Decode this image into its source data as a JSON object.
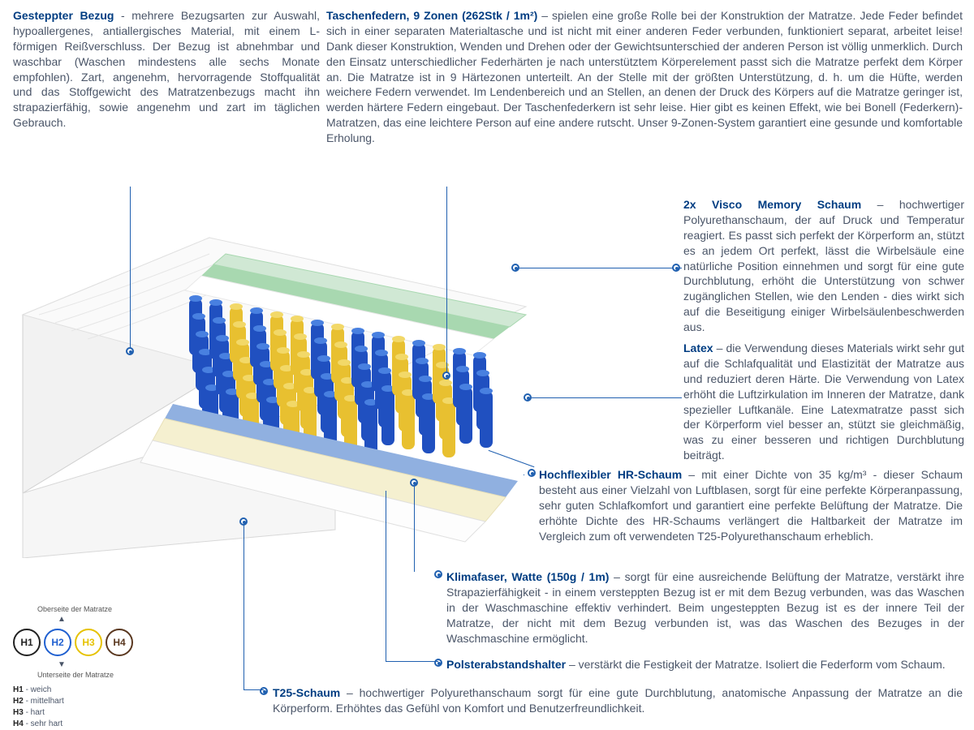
{
  "sections": {
    "bezug": {
      "title": "Gesteppter Bezug",
      "sep": " - ",
      "body": "mehrere Bezugsarten zur Auswahl, hypoallergenes, antiallergisches Material, mit einem L-förmigen Reißverschluss. Der Bezug ist abnehmbar und waschbar (Waschen mindestens alle sechs Monate empfohlen). Zart, angenehm, hervorragende Stoffqualität und das Stoffgewicht des Matratzenbezugs macht ihn strapazierfähig, sowie angenehm und zart im täglichen Gebrauch."
    },
    "federn": {
      "title": "Taschenfedern, 9 Zonen (262Stk / 1m²)",
      "sep": " – ",
      "body": "spielen eine große Rolle bei der Konstruktion der Matratze. Jede Feder befindet sich in einer separaten Materialtasche und ist nicht mit einer anderen Feder verbunden, funktioniert separat, arbeitet leise! Dank dieser Konstruktion, Wenden und Drehen oder der Gewichtsunterschied der anderen Person ist völlig unmerklich. Durch den Einsatz unterschiedlicher Federhärten je nach unterstütztem Körperelement passt sich die Matratze perfekt dem Körper an. Die Matratze ist in 9 Härtezonen unterteilt. An der Stelle mit der größten Unterstützung, d. h. um die Hüfte, werden weichere Federn verwendet. Im Lendenbereich und an Stellen, an denen der Druck des Körpers auf die Matratze geringer ist, werden härtere Federn eingebaut. Der Taschenfederkern ist sehr leise. Hier gibt es keinen Effekt, wie bei Bonell (Federkern)- Matratzen, das eine leichtere Person auf eine andere rutscht. Unser 9-Zonen-System garantiert eine gesunde und komfortable Erholung."
    },
    "visco": {
      "title": "2x Visco Memory Schaum",
      "sep": " – ",
      "body": "hochwertiger Polyurethanschaum, der auf Druck und Temperatur reagiert. Es passt sich perfekt der Körperform an, stützt es an jedem Ort perfekt, lässt die Wirbelsäule eine natürliche Position einnehmen und sorgt für eine gute Durchblutung, erhöht die Unterstützung von schwer zugänglichen Stellen, wie den Lenden - dies wirkt sich auf die Beseitigung einiger Wirbelsäulenbeschwerden aus."
    },
    "latex": {
      "title": "Latex",
      "sep": " – ",
      "body": "die Verwendung dieses Materials wirkt sehr gut auf die Schlafqualität und Elastizität der Matratze aus und reduziert deren Härte. Die Verwendung von Latex erhöht die Luftzirkulation im Inneren der Matratze, dank spezieller Luftkanäle. Eine Latexmatratze passt sich der Körperform viel besser an, stützt sie gleichmäßig, was zu einer besseren und richtigen Durchblutung beiträgt."
    },
    "hr": {
      "title": "Hochflexibler HR-Schaum",
      "sep": " – ",
      "body": "mit einer Dichte von 35 kg/m³ - dieser Schaum besteht aus einer Vielzahl von Luftblasen, sorgt für eine perfekte Körperanpassung, sehr guten Schlafkomfort und garantiert eine perfekte Belüftung der Matratze. Die erhöhte Dichte des HR-Schaums verlängert die Haltbarkeit der Matratze im Vergleich zum oft verwendeten T25-Polyurethanschaum erheblich."
    },
    "klima": {
      "title": "Klimafaser, Watte (150g / 1m)",
      "sep": " – ",
      "body": "sorgt für eine ausreichende Belüftung der Matratze, verstärkt ihre Strapazierfähigkeit - in einem versteppten Bezug ist er mit dem Bezug verbunden, was das Waschen in der Waschmaschine effektiv verhindert. Beim ungesteppten Bezug ist es der innere Teil der Matratze, der nicht mit dem Bezug verbunden ist, was das Waschen des Bezuges in der Waschmaschine ermöglicht."
    },
    "polster": {
      "title": "Polsterabstandshalter",
      "sep": " – ",
      "body": "verstärkt die Festigkeit der Matratze. Isoliert die Federform vom Schaum."
    },
    "t25": {
      "title": "T25-Schaum",
      "sep": " – ",
      "body": "hochwertiger Polyurethanschaum sorgt für eine gute Durchblutung, anatomische Anpassung der Matratze an die Körperform. Erhöhtes das Gefühl von Komfort und Benutzerfreundlichkeit."
    }
  },
  "legend": {
    "top_label": "Oberseite der Matratze",
    "bottom_label": "Unterseite der Matratze",
    "circles": [
      {
        "code": "H1",
        "border": "#222222",
        "text": "#222222"
      },
      {
        "code": "H2",
        "border": "#2060d0",
        "text": "#2060d0"
      },
      {
        "code": "H3",
        "border": "#e6c200",
        "text": "#e6c200"
      },
      {
        "code": "H4",
        "border": "#5a3820",
        "text": "#5a3820"
      }
    ],
    "keys": [
      {
        "code": "H1",
        "label": "weich"
      },
      {
        "code": "H2",
        "label": "mittelhart"
      },
      {
        "code": "H3",
        "label": "hart"
      },
      {
        "code": "H4",
        "label": "sehr hart"
      }
    ]
  },
  "mattress": {
    "colors": {
      "cover": "#f4f4f4",
      "cover_side": "#e8e8e8",
      "green_layer": "#a8d8b0",
      "green_light": "#d0e8d4",
      "white_layer": "#ffffff",
      "blue_spring": "#2050c0",
      "blue_spring_light": "#4880e0",
      "yellow_spring": "#e8c030",
      "blue_pad": "#90b0e0",
      "cream_layer": "#f5f0d0",
      "outline": "#b0b0b0"
    }
  },
  "colors": {
    "title": "#003d82",
    "body": "#4a5568",
    "callout": "#2060b0"
  }
}
